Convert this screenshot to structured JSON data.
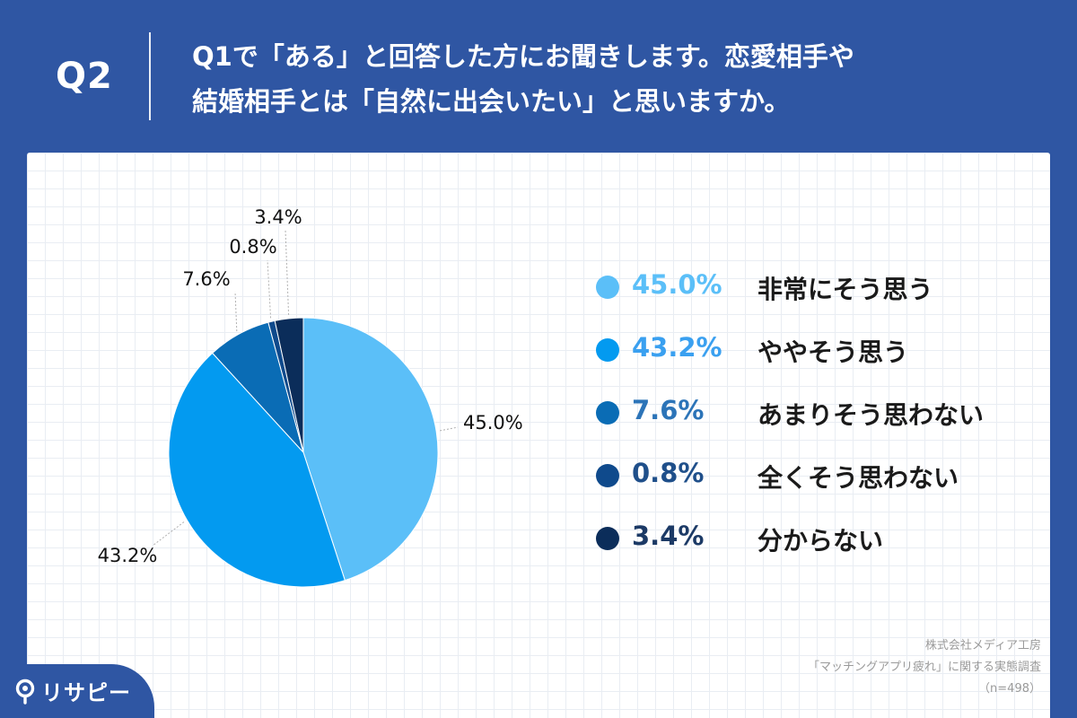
{
  "header": {
    "question_number": "Q2",
    "question_line1": "Q1で「ある」と回答した方にお聞きします。恋愛相手や",
    "question_line2": "結婚相手とは「自然に出会いたい」と思いますか。"
  },
  "chart_data": {
    "type": "pie",
    "title": "",
    "start_angle_deg": 0,
    "direction": "clockwise",
    "slices": [
      {
        "label": "非常にそう思う",
        "value": 45.0,
        "display": "45.0%",
        "color": "#5bbff8"
      },
      {
        "label": "ややそう思う",
        "value": 43.2,
        "display": "43.2%",
        "color": "#039af0"
      },
      {
        "label": "あまりそう思わない",
        "value": 7.6,
        "display": "7.6%",
        "color": "#0a6cb5"
      },
      {
        "label": "全くそう思わない",
        "value": 0.8,
        "display": "0.8%",
        "color": "#0f4a8c"
      },
      {
        "label": "分からない",
        "value": 3.4,
        "display": "3.4%",
        "color": "#0b2d5a"
      }
    ],
    "legend_position": "right"
  },
  "legend_text_colors": [
    "#5bbff8",
    "#3aa0f0",
    "#2c74b8",
    "#1f4f8a",
    "#1c3a66"
  ],
  "source": {
    "line1": "株式会社メディア工房",
    "line2": "「マッチングアプリ疲れ」に関する実態調査",
    "line3": "（n=498）"
  },
  "logo": {
    "text": "リサピー",
    "icon": "pin-icon"
  }
}
